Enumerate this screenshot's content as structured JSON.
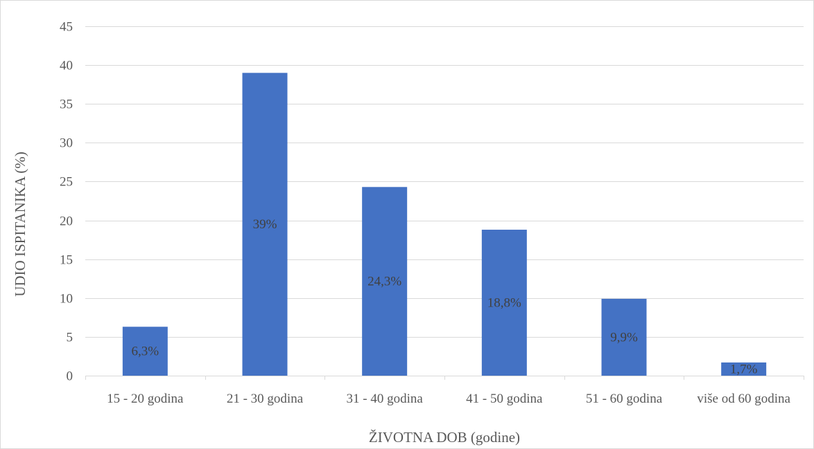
{
  "chart_data": {
    "type": "bar",
    "categories": [
      "15 - 20 godina",
      "21 - 30 godina",
      "31 - 40 godina",
      "41 - 50 godina",
      "51 - 60 godina",
      "više od 60 godina"
    ],
    "values": [
      6.3,
      39,
      24.3,
      18.8,
      9.9,
      1.7
    ],
    "data_labels": [
      "6,3%",
      "39%",
      "24,3%",
      "18,8%",
      "9,9%",
      "1,7%"
    ],
    "y_ticks": [
      "0",
      "5",
      "10",
      "15",
      "20",
      "25",
      "30",
      "35",
      "40",
      "45"
    ],
    "ylim": [
      0,
      45
    ],
    "xlabel": "ŽIVOTNA DOB (godine)",
    "ylabel": "UDIO ISPITANIKA (%)",
    "bar_color": "#4472c4",
    "grid": true,
    "legend": "none"
  }
}
